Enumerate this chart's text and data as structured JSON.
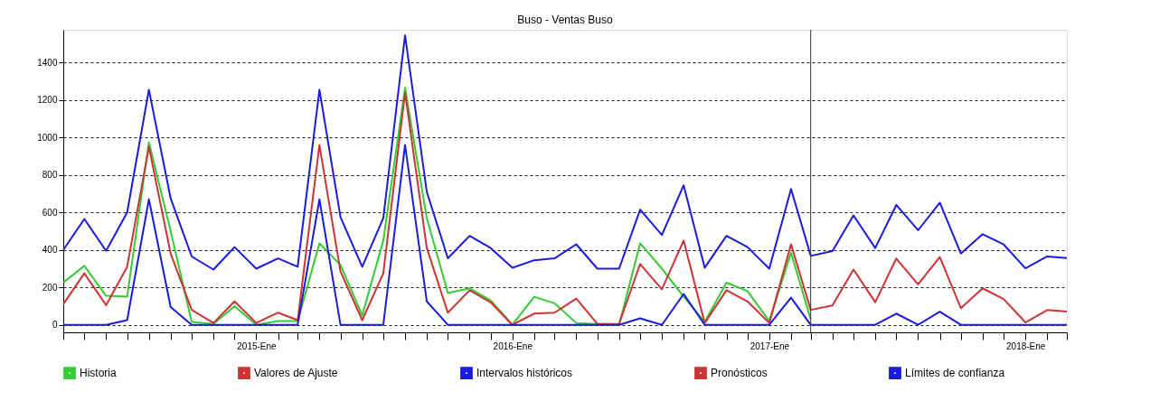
{
  "chart_data": {
    "type": "line",
    "title": "Buso - Ventas Buso",
    "x": [
      "2014-04",
      "2014-05",
      "2014-06",
      "2014-07",
      "2014-08",
      "2014-09",
      "2014-10",
      "2014-11",
      "2014-12",
      "2015-01",
      "2015-02",
      "2015-03",
      "2015-04",
      "2015-05",
      "2015-06",
      "2015-07",
      "2015-08",
      "2015-09",
      "2015-10",
      "2015-11",
      "2015-12",
      "2016-01",
      "2016-02",
      "2016-03",
      "2016-04",
      "2016-05",
      "2016-06",
      "2016-07",
      "2016-08",
      "2016-09",
      "2016-10",
      "2016-11",
      "2016-12",
      "2017-01",
      "2017-02",
      "2017-03"
    ],
    "series": [
      {
        "name": "Historia",
        "color": "#33cc33",
        "values": [
          225,
          315,
          155,
          150,
          975,
          500,
          15,
          5,
          100,
          0,
          20,
          20,
          435,
          320,
          50,
          450,
          1265,
          570,
          170,
          195,
          130,
          0,
          150,
          115,
          10,
          5,
          0,
          435,
          300,
          150,
          15,
          225,
          180,
          20,
          385,
          30
        ]
      },
      {
        "name": "Valores de Ajuste",
        "color": "#cc3333",
        "values": [
          110,
          275,
          105,
          310,
          950,
          380,
          80,
          10,
          125,
          10,
          65,
          25,
          960,
          285,
          25,
          275,
          1240,
          410,
          65,
          185,
          120,
          0,
          60,
          65,
          140,
          5,
          5,
          325,
          190,
          450,
          10,
          185,
          125,
          10,
          430,
          80
        ]
      },
      {
        "name": "Intervalos históricos",
        "color": "#1a1ae0",
        "values": [
          400,
          565,
          395,
          600,
          1255,
          675,
          365,
          295,
          415,
          300,
          355,
          310,
          1255,
          575,
          310,
          570,
          1545,
          710,
          355,
          475,
          410,
          305,
          345,
          355,
          430,
          300,
          300,
          615,
          480,
          745,
          305,
          475,
          415,
          300,
          725,
          370
        ]
      },
      {
        "color": "#1a1ae0",
        "values": [
          0,
          0,
          0,
          25,
          670,
          95,
          0,
          0,
          0,
          0,
          0,
          0,
          670,
          0,
          0,
          0,
          960,
          125,
          0,
          0,
          0,
          0,
          0,
          0,
          0,
          0,
          0,
          35,
          0,
          165,
          0,
          0,
          0,
          0,
          145,
          0
        ]
      },
      {
        "name": "Pronósticos",
        "color": "#cc3333",
        "x": [
          "2017-03",
          "2017-04",
          "2017-05",
          "2017-06",
          "2017-07",
          "2017-08",
          "2017-09",
          "2017-10",
          "2017-11",
          "2017-12",
          "2018-01",
          "2018-02",
          "2018-03"
        ],
        "values": [
          80,
          103,
          295,
          121,
          354,
          216,
          362,
          89,
          195,
          138,
          13,
          79,
          71
        ]
      },
      {
        "name": "Límites de confianza",
        "color": "#1a1ae0",
        "x": [
          "2017-03",
          "2017-04",
          "2017-05",
          "2017-06",
          "2017-07",
          "2017-08",
          "2017-09",
          "2017-10",
          "2017-11",
          "2017-12",
          "2018-01",
          "2018-02",
          "2018-03"
        ],
        "values": [
          368,
          394,
          584,
          410,
          640,
          505,
          652,
          381,
          484,
          429,
          302,
          365,
          357
        ]
      },
      {
        "color": "#1a1ae0",
        "x": [
          "2017-03",
          "2017-04",
          "2017-05",
          "2017-06",
          "2017-07",
          "2017-08",
          "2017-09",
          "2017-10",
          "2017-11",
          "2017-12",
          "2018-01",
          "2018-02",
          "2018-03"
        ],
        "values": [
          0,
          0,
          0,
          0,
          60,
          0,
          70,
          0,
          0,
          0,
          0,
          0,
          0
        ]
      }
    ],
    "xlim": [
      "2014-04",
      "2018-03"
    ],
    "xticks": [
      {
        "value": "2014-04",
        "label": null
      },
      {
        "value": "2014-05",
        "label": null
      },
      {
        "value": "2014-06",
        "label": null
      },
      {
        "value": "2014-07",
        "label": null
      },
      {
        "value": "2014-08",
        "label": null
      },
      {
        "value": "2014-09",
        "label": null
      },
      {
        "value": "2014-10",
        "label": null
      },
      {
        "value": "2014-11",
        "label": null
      },
      {
        "value": "2014-12",
        "label": null
      },
      {
        "value": "2015-01",
        "label": "2015-Ene"
      },
      {
        "value": "2015-02",
        "label": null
      },
      {
        "value": "2015-03",
        "label": null
      },
      {
        "value": "2015-04",
        "label": null
      },
      {
        "value": "2015-05",
        "label": null
      },
      {
        "value": "2015-06",
        "label": null
      },
      {
        "value": "2015-07",
        "label": null
      },
      {
        "value": "2015-08",
        "label": null
      },
      {
        "value": "2015-09",
        "label": null
      },
      {
        "value": "2015-10",
        "label": null
      },
      {
        "value": "2015-11",
        "label": null
      },
      {
        "value": "2015-12",
        "label": null
      },
      {
        "value": "2016-01",
        "label": "2016-Ene"
      },
      {
        "value": "2016-02",
        "label": null
      },
      {
        "value": "2016-03",
        "label": null
      },
      {
        "value": "2016-04",
        "label": null
      },
      {
        "value": "2016-05",
        "label": null
      },
      {
        "value": "2016-06",
        "label": null
      },
      {
        "value": "2016-07",
        "label": null
      },
      {
        "value": "2016-08",
        "label": null
      },
      {
        "value": "2016-09",
        "label": null
      },
      {
        "value": "2016-10",
        "label": null
      },
      {
        "value": "2016-11",
        "label": null
      },
      {
        "value": "2016-12",
        "label": null
      },
      {
        "value": "2017-01",
        "label": "2017-Ene"
      },
      {
        "value": "2017-02",
        "label": null
      },
      {
        "value": "2017-03",
        "label": null
      },
      {
        "value": "2017-04",
        "label": null
      },
      {
        "value": "2017-05",
        "label": null
      },
      {
        "value": "2017-06",
        "label": null
      },
      {
        "value": "2017-07",
        "label": null
      },
      {
        "value": "2017-08",
        "label": null
      },
      {
        "value": "2017-09",
        "label": null
      },
      {
        "value": "2017-10",
        "label": null
      },
      {
        "value": "2017-11",
        "label": null
      },
      {
        "value": "2017-12",
        "label": null
      },
      {
        "value": "2018-01",
        "label": "2018-Ene"
      },
      {
        "value": "2018-02",
        "label": null
      },
      {
        "value": "2018-03",
        "label": null
      }
    ],
    "ylim": [
      -40,
      1575
    ],
    "yticks": [
      0,
      200,
      400,
      600,
      800,
      1000,
      1200,
      1400
    ],
    "grid": "y",
    "legend": "bottom",
    "line_style": "solid",
    "ref_lines": [
      {
        "axis": "x",
        "value": "2017-03",
        "color": "#333333"
      }
    ]
  }
}
